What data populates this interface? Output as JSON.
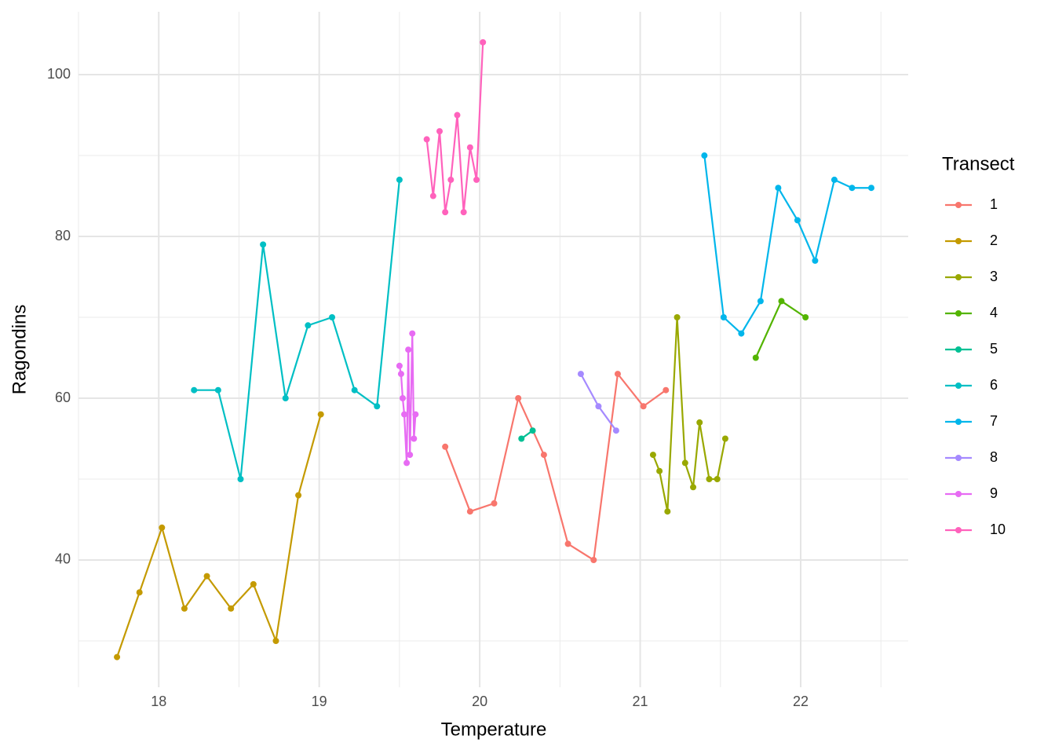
{
  "chart_data": {
    "type": "line",
    "x_label": "Temperature",
    "y_label": "Ragondins",
    "legend_title": "Transect",
    "legend_position": "right",
    "xlim": [
      17.5,
      22.67
    ],
    "ylim": [
      24.27,
      107.77
    ],
    "xticks": [
      18,
      19,
      20,
      21,
      22
    ],
    "yticks": [
      40,
      60,
      80,
      100
    ],
    "x_minor_grid": [
      17.5,
      18.5,
      19.5,
      20.5,
      21.5,
      22.5
    ],
    "y_minor_grid": [
      30,
      50,
      70,
      90
    ],
    "grid": true,
    "series": [
      {
        "name": "1",
        "color": "#F8766D",
        "x": [
          19.785,
          19.94,
          20.09,
          20.24,
          20.4,
          20.55,
          20.71,
          20.86,
          21.02,
          21.16
        ],
        "values": [
          54,
          46,
          47,
          60,
          53,
          42,
          40,
          63,
          59,
          61
        ]
      },
      {
        "name": "2",
        "color": "#C49A00",
        "x": [
          17.74,
          17.88,
          18.02,
          18.16,
          18.3,
          18.45,
          18.59,
          18.73,
          18.87,
          19.01
        ],
        "values": [
          28,
          36,
          44,
          34,
          38,
          34,
          37,
          30,
          48,
          58
        ]
      },
      {
        "name": "3",
        "color": "#99A800",
        "x": [
          21.08,
          21.12,
          21.17,
          21.23,
          21.28,
          21.33,
          21.37,
          21.43,
          21.48,
          21.53
        ],
        "values": [
          53,
          51,
          46,
          70,
          52,
          49,
          57,
          50,
          50,
          55
        ]
      },
      {
        "name": "4",
        "color": "#53B400",
        "x": [
          21.72,
          21.88,
          22.03
        ],
        "values": [
          65,
          72,
          70
        ]
      },
      {
        "name": "5",
        "color": "#00C094",
        "x": [
          20.26,
          20.33
        ],
        "values": [
          55,
          56
        ]
      },
      {
        "name": "6",
        "color": "#00BFC4",
        "x": [
          18.22,
          18.37,
          18.51,
          18.65,
          18.79,
          18.93,
          19.08,
          19.22,
          19.36,
          19.5
        ],
        "values": [
          61,
          61,
          50,
          79,
          60,
          69,
          70,
          61,
          59,
          87
        ]
      },
      {
        "name": "7",
        "color": "#00B6EB",
        "x": [
          21.4,
          21.52,
          21.63,
          21.75,
          21.86,
          21.98,
          22.09,
          22.21,
          22.32,
          22.44
        ],
        "values": [
          90,
          70,
          68,
          72,
          86,
          82,
          77,
          87,
          86,
          86
        ]
      },
      {
        "name": "8",
        "color": "#A58AFF",
        "x": [
          20.63,
          20.74,
          20.85
        ],
        "values": [
          63,
          59,
          56
        ]
      },
      {
        "name": "9",
        "color": "#E76BF3",
        "x": [
          19.5,
          19.51,
          19.52,
          19.53,
          19.545,
          19.555,
          19.565,
          19.58,
          19.59,
          19.6
        ],
        "values": [
          64,
          63,
          60,
          58,
          52,
          66,
          53,
          68,
          55,
          58
        ]
      },
      {
        "name": "10",
        "color": "#FF62BC",
        "x": [
          19.67,
          19.71,
          19.75,
          19.785,
          19.82,
          19.86,
          19.9,
          19.94,
          19.98,
          20.02
        ],
        "values": [
          92,
          85,
          93,
          83,
          87,
          95,
          83,
          91,
          87,
          104
        ]
      }
    ]
  }
}
